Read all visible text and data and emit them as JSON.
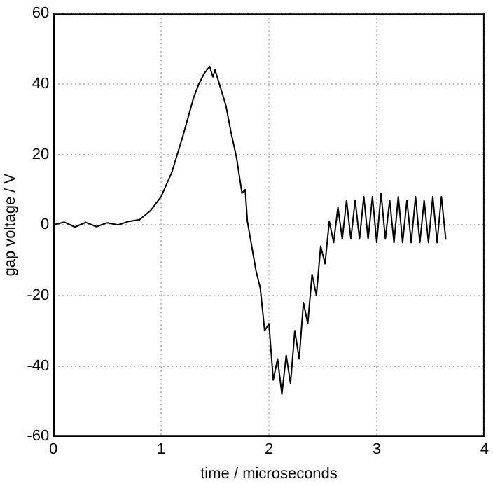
{
  "chart_data": {
    "type": "line",
    "xlabel": "time / microseconds",
    "ylabel": "gap voltage / V",
    "x": [
      0,
      0.1,
      0.2,
      0.3,
      0.4,
      0.5,
      0.6,
      0.7,
      0.8,
      0.9,
      1.0,
      1.1,
      1.2,
      1.3,
      1.35,
      1.4,
      1.45,
      1.48,
      1.5,
      1.55,
      1.6,
      1.65,
      1.7,
      1.75,
      1.78,
      1.8,
      1.84,
      1.88,
      1.92,
      1.96,
      2.0,
      2.04,
      2.08,
      2.12,
      2.16,
      2.2,
      2.24,
      2.28,
      2.32,
      2.36,
      2.4,
      2.44,
      2.48,
      2.52,
      2.56,
      2.6,
      2.64,
      2.68,
      2.72,
      2.76,
      2.8,
      2.84,
      2.88,
      2.92,
      2.96,
      3.0,
      3.04,
      3.08,
      3.12,
      3.16,
      3.2,
      3.24,
      3.28,
      3.32,
      3.36,
      3.4,
      3.44,
      3.48,
      3.52,
      3.56,
      3.6,
      3.64
    ],
    "series": [
      {
        "color": "#000000",
        "values": [
          0,
          0.8,
          -0.6,
          0.7,
          -0.5,
          0.6,
          0,
          1,
          1.5,
          4,
          8,
          15,
          25,
          36,
          40,
          43,
          45,
          42,
          44,
          39,
          34,
          26,
          19,
          9,
          10,
          1,
          -6,
          -13,
          -18,
          -30,
          -28,
          -44,
          -38,
          -48,
          -37,
          -45,
          -30,
          -38,
          -22,
          -28,
          -14,
          -20,
          -6,
          -11,
          1,
          -5,
          5,
          -4,
          7,
          -4,
          7,
          -4,
          8,
          -4,
          8,
          -5,
          9,
          -4,
          7,
          -5,
          8,
          -5,
          7,
          -5,
          8,
          -5,
          7,
          -5,
          8,
          -5,
          8,
          -4
        ]
      }
    ],
    "xlim": [
      0,
      4
    ],
    "xticks": [
      0,
      1,
      2,
      3,
      4
    ],
    "ylim": [
      -60,
      60
    ],
    "yticks": [
      -60,
      -40,
      -20,
      0,
      20,
      40,
      60
    ],
    "grid": true,
    "legend": false,
    "marker": "none",
    "line_style": "solid"
  }
}
